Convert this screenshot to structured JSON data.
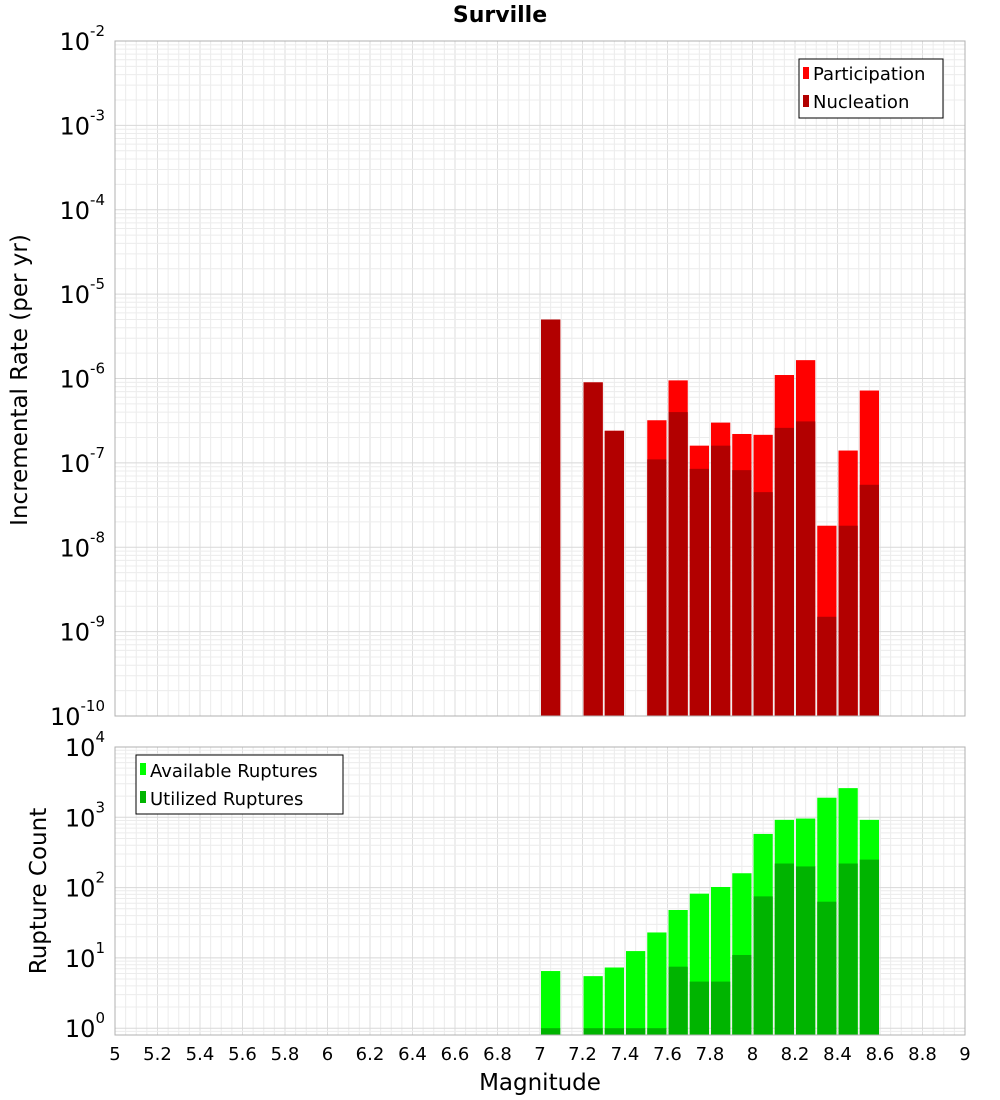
{
  "chart_data": [
    {
      "type": "bar",
      "title": "Surville",
      "xlabel": "Magnitude",
      "ylabel": "Incremental Rate (per yr)",
      "yscale": "log",
      "xlim": [
        5,
        9
      ],
      "ylim": [
        1e-10,
        0.01
      ],
      "grid": true,
      "legend_position": "top-right",
      "x_ticks": [
        "5",
        "5.2",
        "5.4",
        "5.6",
        "5.8",
        "6",
        "6.2",
        "6.4",
        "6.6",
        "6.8",
        "7",
        "7.2",
        "7.4",
        "7.6",
        "7.8",
        "8",
        "8.2",
        "8.4",
        "8.6",
        "8.8",
        "9"
      ],
      "y_ticks": [
        {
          "base": "10",
          "exp": "-10",
          "value": 1e-10
        },
        {
          "base": "10",
          "exp": "-9",
          "value": 1e-09
        },
        {
          "base": "10",
          "exp": "-8",
          "value": 1e-08
        },
        {
          "base": "10",
          "exp": "-7",
          "value": 1e-07
        },
        {
          "base": "10",
          "exp": "-6",
          "value": 1e-06
        },
        {
          "base": "10",
          "exp": "-5",
          "value": 1e-05
        },
        {
          "base": "10",
          "exp": "-4",
          "value": 0.0001
        },
        {
          "base": "10",
          "exp": "-3",
          "value": 0.001
        },
        {
          "base": "10",
          "exp": "-2",
          "value": 0.01
        }
      ],
      "bin_width": 0.1,
      "series": [
        {
          "name": "Participation",
          "color": "#ff0000",
          "x": [
            7.05,
            7.25,
            7.35,
            7.55,
            7.65,
            7.75,
            7.85,
            7.95,
            8.05,
            8.15,
            8.25,
            8.35,
            8.45,
            8.55
          ],
          "values": [
            5e-06,
            9e-07,
            2.4e-07,
            3.2e-07,
            9.5e-07,
            1.6e-07,
            3e-07,
            2.2e-07,
            2.15e-07,
            1.1e-06,
            1.65e-06,
            1.8e-08,
            1.4e-07,
            7.2e-07
          ]
        },
        {
          "name": "Nucleation",
          "color": "#b20000",
          "x": [
            7.05,
            7.25,
            7.35,
            7.55,
            7.65,
            7.75,
            7.85,
            7.95,
            8.05,
            8.15,
            8.25,
            8.35,
            8.45,
            8.55
          ],
          "values": [
            5e-06,
            9e-07,
            2.4e-07,
            1.1e-07,
            4e-07,
            8.5e-08,
            1.6e-07,
            8.2e-08,
            4.5e-08,
            2.6e-07,
            3.1e-07,
            1.5e-09,
            1.8e-08,
            5.5e-08
          ]
        }
      ]
    },
    {
      "type": "bar",
      "xlabel": "Magnitude",
      "ylabel": "Rupture Count",
      "yscale": "log",
      "xlim": [
        5,
        9
      ],
      "ylim": [
        0.8,
        10000
      ],
      "grid": true,
      "legend_position": "top-left",
      "y_ticks": [
        {
          "base": "10",
          "exp": "0",
          "value": 1
        },
        {
          "base": "10",
          "exp": "1",
          "value": 10
        },
        {
          "base": "10",
          "exp": "2",
          "value": 100
        },
        {
          "base": "10",
          "exp": "3",
          "value": 1000
        },
        {
          "base": "10",
          "exp": "4",
          "value": 10000
        }
      ],
      "bin_width": 0.1,
      "series": [
        {
          "name": "Available Ruptures",
          "color": "#00ff00",
          "x": [
            7.05,
            7.25,
            7.35,
            7.45,
            7.55,
            7.65,
            7.75,
            7.85,
            7.95,
            8.05,
            8.15,
            8.25,
            8.35,
            8.45,
            8.55
          ],
          "values": [
            6.5,
            5.5,
            7.3,
            12.5,
            23,
            48,
            82,
            102,
            160,
            580,
            920,
            960,
            1900,
            2600,
            920
          ]
        },
        {
          "name": "Utilized Ruptures",
          "color": "#00b400",
          "x": [
            7.05,
            7.25,
            7.35,
            7.45,
            7.55,
            7.65,
            7.75,
            7.85,
            7.95,
            8.05,
            8.15,
            8.25,
            8.35,
            8.45,
            8.55
          ],
          "values": [
            1,
            1,
            1,
            1,
            1,
            7.5,
            4.6,
            4.6,
            11,
            75,
            220,
            200,
            63,
            220,
            250
          ]
        }
      ]
    }
  ]
}
